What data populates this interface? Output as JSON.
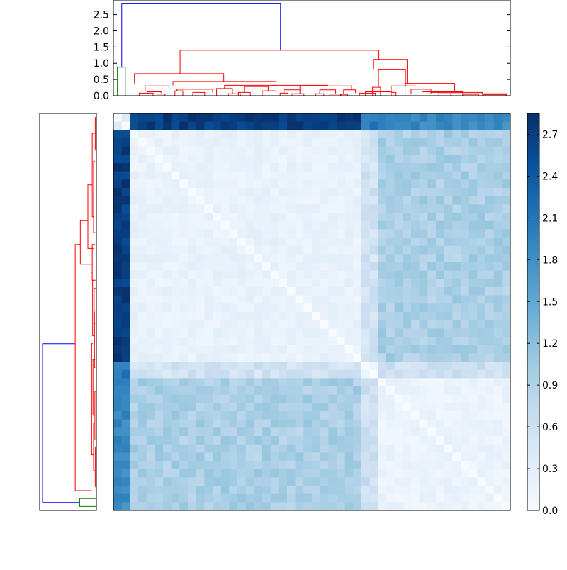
{
  "chart_data": {
    "type": "heatmap",
    "title": "",
    "xlabel": "",
    "ylabel": "",
    "matrix_size": 48,
    "value_range": [
      0.0,
      2.85
    ],
    "colormap": "Blues",
    "cluster_order_groups": {
      "outliers": [
        0,
        1
      ],
      "block_A": {
        "from": 2,
        "to": 29
      },
      "block_B": {
        "from": 30,
        "to": 31
      },
      "block_C": {
        "from": 32,
        "to": 47
      }
    },
    "block_distances": {
      "within_A": 0.12,
      "within_C": 0.08,
      "A_C": 0.95,
      "A_B": 0.55,
      "B_C": 0.6,
      "outlier_A": 2.7,
      "outlier_C": 1.9,
      "outlier_B": 2.0,
      "outlier_pair": 0.35
    },
    "top_dendrogram": {
      "ylim": [
        0,
        2.95
      ],
      "yticks": [
        "0.0",
        "0.5",
        "1.0",
        "1.5",
        "2.0",
        "2.5"
      ],
      "root_height": 2.85,
      "main_split_height": 1.4,
      "small_cluster_height": 0.88
    },
    "left_dendrogram": {
      "root_height": 2.85,
      "small_cluster_height": 0.88
    },
    "colorbar": {
      "ticks": [
        "0.0",
        "0.3",
        "0.6",
        "0.9",
        "1.2",
        "1.5",
        "1.8",
        "2.1",
        "2.4",
        "2.7"
      ],
      "range": [
        0.0,
        2.85
      ]
    },
    "colors": {
      "root_link": "#0000ff",
      "red_links": "#ff0000",
      "green_links": "#008000",
      "axis": "#000000"
    }
  }
}
